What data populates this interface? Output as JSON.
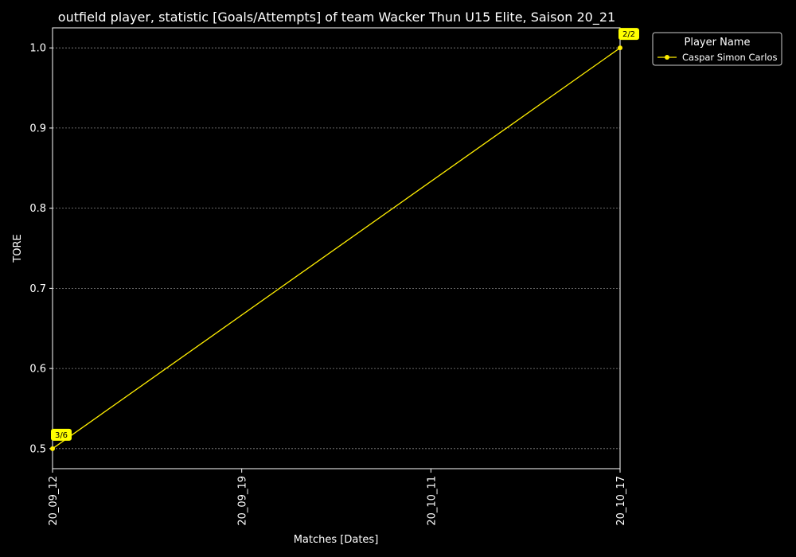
{
  "chart_data": {
    "type": "line",
    "title": "outfield player, statistic [Goals/Attempts] of team Wacker Thun U15 Elite, Saison 20_21",
    "xlabel": "Matches [Dates]",
    "ylabel": "TORE",
    "x_ticks": [
      "20_09_12",
      "20_09_19",
      "20_10_11",
      "20_10_17"
    ],
    "y_ticks": [
      "0.5",
      "0.6",
      "0.7",
      "0.8",
      "0.9",
      "1.0"
    ],
    "ylim": [
      0.475,
      1.025
    ],
    "grid": "horizontal dotted",
    "legend": {
      "title": "Player Name",
      "placement": "outside top-right"
    },
    "series": [
      {
        "name": "Caspar Simon Carlos",
        "color": "#ffee00",
        "points": [
          {
            "x": "20_09_12",
            "y": 0.5,
            "label": "3/6"
          },
          {
            "x": "20_10_17",
            "y": 1.0,
            "label": "2/2"
          }
        ]
      }
    ]
  },
  "colors": {
    "background": "#000000",
    "foreground": "#ffffff",
    "grid": "#888888",
    "annotation_box": "#ffff00",
    "annotation_text": "#000000"
  }
}
